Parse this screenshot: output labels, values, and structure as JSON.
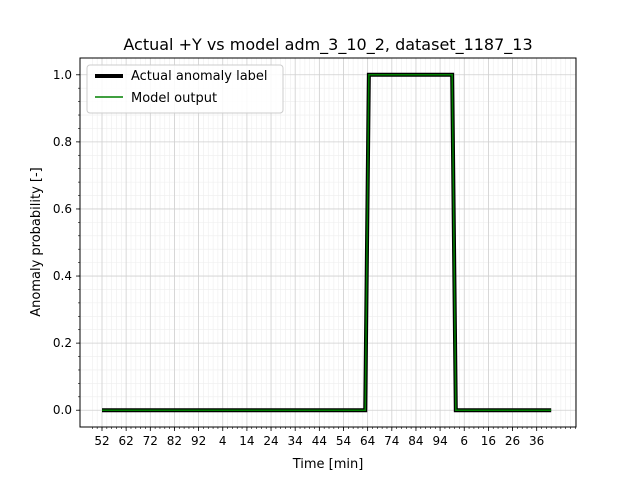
{
  "chart_data": {
    "type": "line",
    "title": "Actual +Y vs model adm_3_10_2, dataset_1187_13",
    "xlabel": "Time [min]",
    "ylabel": "Anomaly probability [-]",
    "x_tick_labels": [
      "52",
      "62",
      "72",
      "82",
      "92",
      "4",
      "14",
      "24",
      "34",
      "44",
      "54",
      "64",
      "74",
      "84",
      "94",
      "6",
      "16",
      "26",
      "36"
    ],
    "y_ticks": [
      0.0,
      0.2,
      0.4,
      0.6,
      0.8,
      1.0
    ],
    "y_tick_labels": [
      "0.0",
      "0.2",
      "0.4",
      "0.6",
      "0.8",
      "1.0"
    ],
    "ylim": [
      -0.05,
      1.05
    ],
    "grid": true,
    "legend_position": "upper-left",
    "series": [
      {
        "name": "Actual anomaly label",
        "color": "#000000",
        "style": "thick",
        "points": [
          {
            "x_tick_index": 0.0,
            "y": 0.0
          },
          {
            "x_tick_index": 10.9,
            "y": 0.0
          },
          {
            "x_tick_index": 11.05,
            "y": 1.0
          },
          {
            "x_tick_index": 14.5,
            "y": 1.0
          },
          {
            "x_tick_index": 14.65,
            "y": 0.0
          },
          {
            "x_tick_index": 18.6,
            "y": 0.0
          }
        ]
      },
      {
        "name": "Model output",
        "color": "#008000",
        "style": "thin",
        "points": [
          {
            "x_tick_index": 0.0,
            "y": 0.0
          },
          {
            "x_tick_index": 10.9,
            "y": 0.0
          },
          {
            "x_tick_index": 11.05,
            "y": 1.0
          },
          {
            "x_tick_index": 14.5,
            "y": 1.0
          },
          {
            "x_tick_index": 14.65,
            "y": 0.0
          },
          {
            "x_tick_index": 18.6,
            "y": 0.0
          }
        ]
      }
    ]
  }
}
